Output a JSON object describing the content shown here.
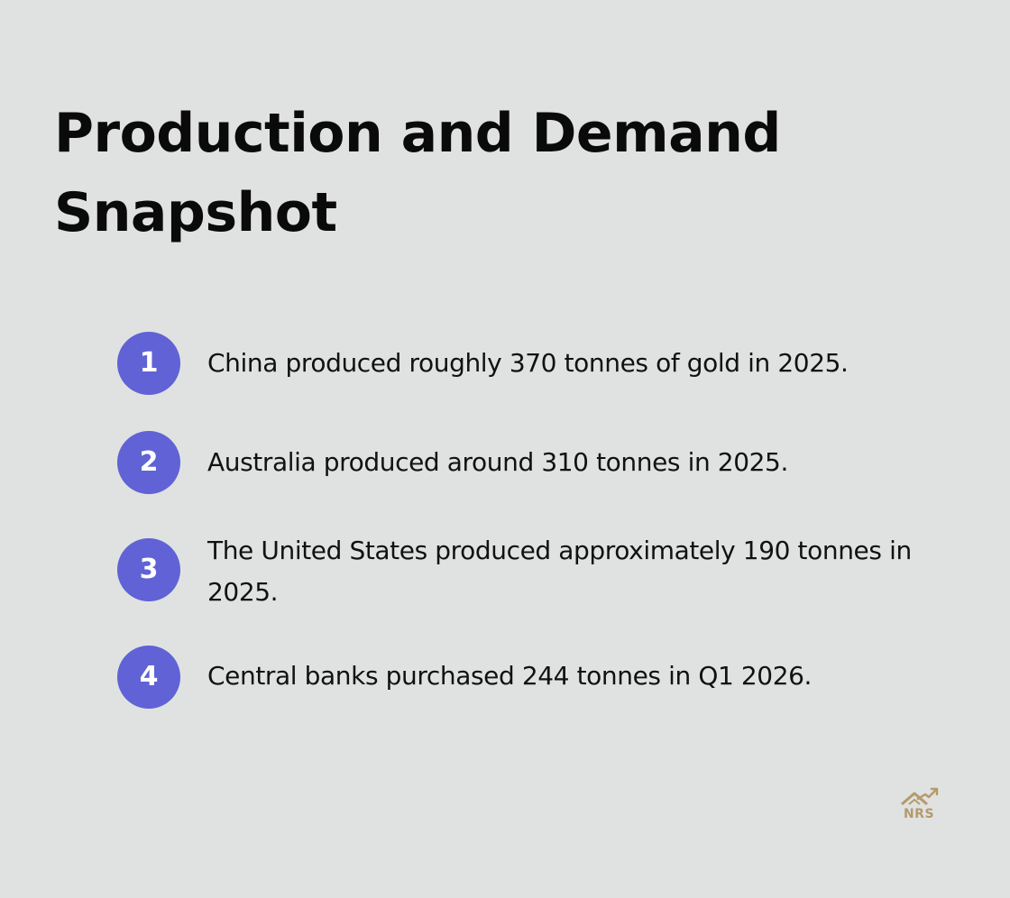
{
  "title": "Production and Demand Snapshot",
  "accent_color": "#6062d6",
  "items": [
    {
      "number": "1",
      "text": "China produced roughly 370 tonnes of gold in 2025."
    },
    {
      "number": "2",
      "text": "Australia produced around 310 tonnes in 2025."
    },
    {
      "number": "3",
      "text": "The United States produced approximately 190 tonnes in 2025."
    },
    {
      "number": "4",
      "text": "Central banks purchased 244 tonnes in Q1 2026."
    }
  ],
  "logo": {
    "text": "NRS",
    "icon": "house-growth-logo-icon",
    "color": "#b59a6a"
  }
}
